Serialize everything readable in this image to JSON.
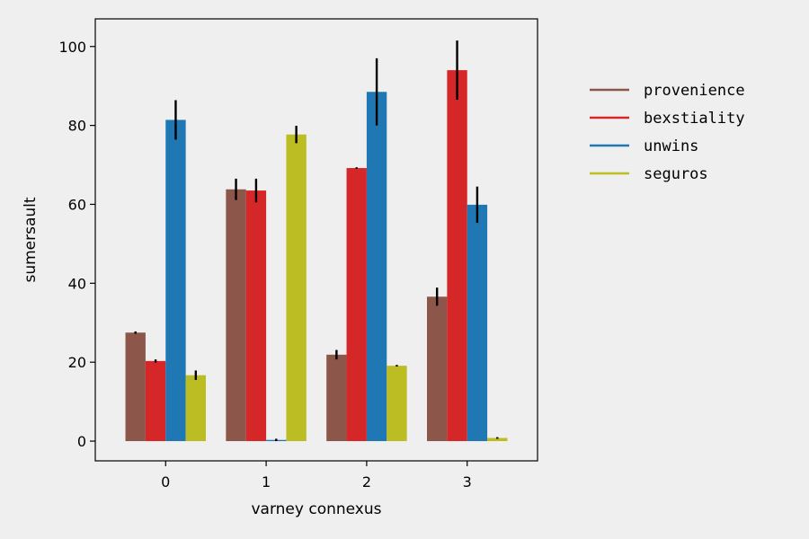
{
  "chart_data": {
    "type": "bar",
    "xlabel": "varney connexus",
    "ylabel": "sumersault",
    "categories": [
      "0",
      "1",
      "2",
      "3"
    ],
    "ylim": [
      -5,
      107
    ],
    "yticks": [
      0,
      20,
      40,
      60,
      80,
      100
    ],
    "grid": false,
    "legend_position": "right",
    "error_bar_color": "#000000",
    "series": [
      {
        "name": "provenience",
        "color": "#8c564b",
        "values": [
          27.5,
          63.8,
          21.9,
          36.6
        ],
        "errors": [
          0.3,
          2.7,
          1.2,
          2.3
        ]
      },
      {
        "name": "bexstiality",
        "color": "#d62728",
        "values": [
          20.3,
          63.5,
          69.2,
          94.0
        ],
        "errors": [
          0.4,
          3.0,
          0.2,
          7.5
        ]
      },
      {
        "name": "unwins",
        "color": "#1f77b4",
        "values": [
          81.4,
          0.3,
          88.5,
          59.9
        ],
        "errors": [
          5.0,
          0.3,
          8.5,
          4.6
        ]
      },
      {
        "name": "seguros",
        "color": "#bcbd22",
        "values": [
          16.7,
          77.7,
          19.1,
          0.8
        ],
        "errors": [
          1.2,
          2.2,
          0.2,
          0.2
        ]
      }
    ]
  }
}
